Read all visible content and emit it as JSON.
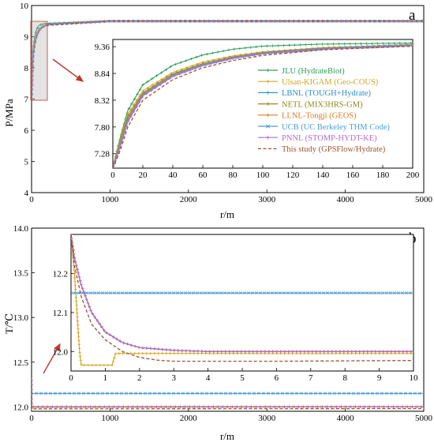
{
  "chart_data": [
    {
      "panel": "a",
      "type": "line",
      "xlabel": "r/m",
      "ylabel": "P/MPa",
      "xlim": [
        0,
        5000
      ],
      "ylim": [
        4,
        10
      ],
      "xticks": [
        "0",
        "1000",
        "2000",
        "3000",
        "4000",
        "5000"
      ],
      "yticks": [
        "4",
        "5",
        "6",
        "7",
        "8",
        "9",
        "10"
      ],
      "series": [
        {
          "name": "JLU (HydrateBiot)",
          "color": "#2ca05a",
          "marker": "plus",
          "style": "solid",
          "x": [
            0,
            5,
            10,
            20,
            40,
            60,
            80,
            100,
            140,
            200,
            1000,
            3000,
            5000
          ],
          "y": [
            7.02,
            7.6,
            8.12,
            8.62,
            9.0,
            9.2,
            9.31,
            9.37,
            9.41,
            9.43,
            9.5,
            9.5,
            9.5
          ]
        },
        {
          "name": "Ulsan-KIGAM (Geo-COUS)",
          "color": "#d4a521",
          "marker": "plus",
          "style": "solid",
          "x": [
            0,
            5,
            10,
            20,
            40,
            60,
            80,
            100,
            140,
            200,
            1000,
            3000,
            5000
          ],
          "y": [
            7.02,
            7.55,
            8.05,
            8.5,
            8.86,
            9.06,
            9.18,
            9.26,
            9.34,
            9.4,
            9.5,
            9.5,
            9.5
          ]
        },
        {
          "name": "LBNL (TOUGH+Hydrate)",
          "color": "#2b8fc9",
          "marker": "plus",
          "style": "solid",
          "x": [
            0,
            5,
            10,
            20,
            40,
            60,
            80,
            100,
            140,
            200,
            1000,
            3000,
            5000
          ],
          "y": [
            7.0,
            7.45,
            7.95,
            8.43,
            8.8,
            9.01,
            9.14,
            9.23,
            9.32,
            9.39,
            9.5,
            9.5,
            9.5
          ]
        },
        {
          "name": "NETL (MIX3HRS-GM)",
          "color": "#8a8a1a",
          "marker": "plus",
          "style": "solid",
          "x": [
            0,
            5,
            10,
            20,
            40,
            60,
            80,
            100,
            140,
            200,
            1000,
            3000,
            5000
          ],
          "y": [
            7.0,
            7.5,
            8.0,
            8.46,
            8.83,
            9.03,
            9.16,
            9.24,
            9.33,
            9.39,
            9.5,
            9.5,
            9.5
          ]
        },
        {
          "name": "LLNL-Tongji (GEOS)",
          "color": "#e07b1f",
          "marker": "plus",
          "style": "solid",
          "x": [
            0,
            5,
            10,
            20,
            40,
            60,
            80,
            100,
            140,
            200,
            1000,
            3000,
            5000
          ],
          "y": [
            7.0,
            7.47,
            7.96,
            8.44,
            8.81,
            9.02,
            9.15,
            9.23,
            9.32,
            9.39,
            9.5,
            9.5,
            9.5
          ]
        },
        {
          "name": "UCB (UC Berkeley THM Code)",
          "color": "#4a9fd6",
          "marker": "x",
          "style": "solid",
          "x": [
            0,
            5,
            10,
            20,
            40,
            60,
            80,
            100,
            140,
            200,
            1000,
            3000,
            5000
          ],
          "y": [
            7.0,
            7.44,
            7.93,
            8.42,
            8.8,
            9.01,
            9.14,
            9.23,
            9.32,
            9.39,
            9.5,
            9.5,
            9.5
          ]
        },
        {
          "name": "PNNL (STOMP-HYDT-KE)",
          "color": "#b36ad6",
          "marker": "plus",
          "style": "solid",
          "x": [
            0,
            5,
            10,
            20,
            40,
            60,
            80,
            100,
            140,
            200,
            1000,
            3000,
            5000
          ],
          "y": [
            7.0,
            7.42,
            7.9,
            8.4,
            8.78,
            8.99,
            9.13,
            9.22,
            9.31,
            9.38,
            9.5,
            9.5,
            9.5
          ]
        },
        {
          "name": "This study (GPSFlow/Hydrate)",
          "color": "#a0522d",
          "marker": "none",
          "style": "dashed",
          "x": [
            0,
            5,
            10,
            20,
            40,
            60,
            80,
            100,
            140,
            200,
            1000,
            3000,
            5000
          ],
          "y": [
            7.0,
            7.35,
            7.8,
            8.32,
            8.72,
            8.95,
            9.09,
            9.19,
            9.3,
            9.37,
            9.5,
            9.5,
            9.5
          ]
        }
      ],
      "inset": {
        "xlim": [
          0,
          200
        ],
        "ylim": [
          7.0,
          9.5
        ],
        "xticks": [
          "0",
          "20",
          "40",
          "60",
          "80",
          "100",
          "120",
          "140",
          "160",
          "180",
          "200"
        ],
        "yticks": [
          "7.28",
          "7.80",
          "8.32",
          "8.84",
          "9.36"
        ]
      },
      "legend_position": "inside-inset-right"
    },
    {
      "panel": "b",
      "type": "line",
      "xlabel": "r/m",
      "ylabel": "T/℃",
      "xlim": [
        0,
        5000
      ],
      "ylim": [
        11.95,
        14.0
      ],
      "xticks": [
        "0",
        "1000",
        "2000",
        "3000",
        "4000",
        "5000"
      ],
      "yticks": [
        "12.0",
        "12.5",
        "13.0",
        "13.5",
        "14.0"
      ],
      "series": [
        {
          "name": "JLU (HydrateBiot)",
          "color": "#2ca05a",
          "marker": "plus",
          "x": [
            0,
            0.1,
            0.3,
            0.6,
            1,
            1.5,
            2,
            3,
            4,
            6,
            10,
            5000
          ],
          "y": [
            12.3,
            12.24,
            12.17,
            12.1,
            12.05,
            12.023,
            12.01,
            12.003,
            12.0,
            12.0,
            12.0,
            12.0
          ]
        },
        {
          "name": "Ulsan-KIGAM (Geo-COUS)",
          "color": "#d4a521",
          "marker": "plus",
          "x": [
            0,
            0.1,
            0.25,
            0.3,
            0.4,
            1.2,
            1.3,
            2,
            4,
            10,
            5000
          ],
          "y": [
            12.3,
            12.2,
            12.0,
            11.965,
            11.965,
            11.965,
            11.995,
            11.995,
            11.995,
            11.995,
            12.0
          ]
        },
        {
          "name": "LBNL (TOUGH+Hydrate)",
          "color": "#2b8fc9",
          "marker": "plus",
          "x": [
            0,
            0.1,
            0.3,
            0.6,
            1,
            1.5,
            2,
            3,
            4,
            6,
            10,
            5000
          ],
          "y": [
            12.3,
            12.24,
            12.17,
            12.1,
            12.05,
            12.023,
            12.01,
            12.003,
            12.0,
            12.0,
            12.0,
            12.0
          ]
        },
        {
          "name": "NETL (MIX3HRS-GM)",
          "color": "#8a8a1a",
          "marker": "plus",
          "x": [
            0,
            0.1,
            0.3,
            0.6,
            1,
            1.5,
            2,
            3,
            4,
            6,
            10,
            5000
          ],
          "y": [
            12.3,
            12.24,
            12.17,
            12.1,
            12.05,
            12.023,
            12.01,
            12.003,
            12.0,
            12.0,
            12.0,
            12.0
          ]
        },
        {
          "name": "LLNL-Tongji (GEOS)",
          "color": "#e07b1f",
          "marker": "plus",
          "x": [
            0,
            0.1,
            0.3,
            0.6,
            1,
            1.5,
            2,
            3,
            4,
            6,
            10,
            5000
          ],
          "y": [
            12.3,
            12.24,
            12.17,
            12.1,
            12.05,
            12.023,
            12.01,
            12.003,
            12.0,
            12.0,
            12.0,
            12.0
          ]
        },
        {
          "name": "UCB (UC Berkeley THM Code)",
          "color": "#4a9fd6",
          "marker": "x",
          "x": [
            0,
            10,
            5000
          ],
          "y": [
            12.15,
            12.15,
            12.15
          ]
        },
        {
          "name": "PNNL (STOMP-HYDT-KE)",
          "color": "#b36ad6",
          "marker": "plus",
          "x": [
            0,
            0.1,
            0.3,
            0.6,
            1,
            1.5,
            2,
            3,
            4,
            6,
            10,
            5000
          ],
          "y": [
            12.3,
            12.24,
            12.17,
            12.1,
            12.05,
            12.023,
            12.01,
            12.003,
            12.0,
            12.0,
            12.0,
            12.0
          ]
        },
        {
          "name": "This study (GPSFlow/Hydrate)",
          "color": "#a0522d",
          "marker": "none",
          "style": "dashed",
          "x": [
            0,
            0.1,
            0.3,
            0.6,
            1,
            1.5,
            2,
            2.5,
            3,
            4,
            6,
            10,
            5000
          ],
          "y": [
            12.3,
            12.22,
            12.14,
            12.07,
            12.03,
            12.0,
            11.985,
            11.978,
            11.975,
            11.975,
            11.975,
            11.977,
            11.98
          ]
        }
      ],
      "inset": {
        "xlim": [
          0,
          10
        ],
        "ylim": [
          11.95,
          12.3
        ],
        "xticks": [
          "0",
          "1",
          "2",
          "3",
          "4",
          "5",
          "6",
          "7",
          "8",
          "9",
          "10"
        ],
        "yticks": [
          "12.0",
          "12.1",
          "12.2"
        ]
      }
    }
  ]
}
